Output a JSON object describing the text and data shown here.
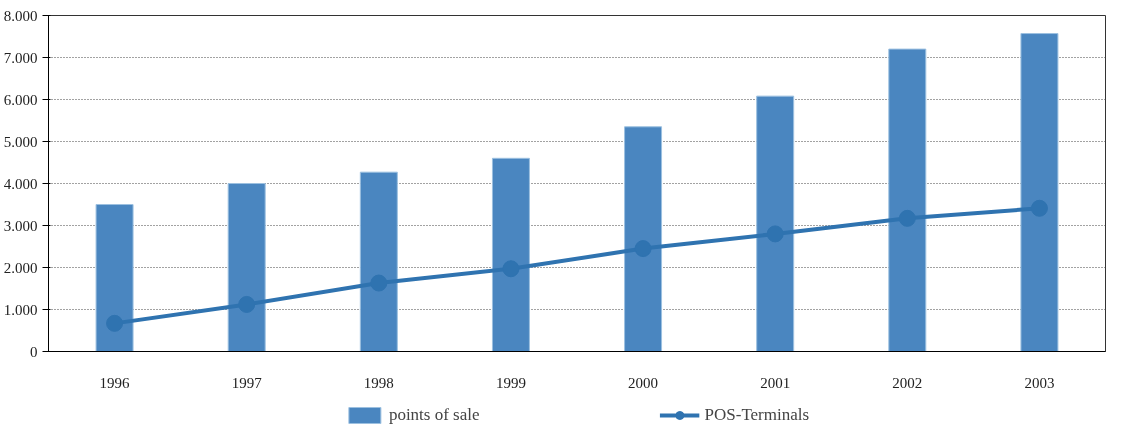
{
  "chart_data": {
    "type": "bar",
    "categories": [
      "1996",
      "1997",
      "1998",
      "1999",
      "2000",
      "2001",
      "2002",
      "2003"
    ],
    "series": [
      {
        "name": "points of sale",
        "color": "#4a86c0",
        "values": [
          3500,
          4000,
          4270,
          4600,
          5350,
          6080,
          7200,
          7570
        ]
      },
      {
        "name": "POS-Terminals",
        "type": "line",
        "color": "#2f73b0",
        "marker": "circle",
        "values": [
          670,
          1120,
          1630,
          1970,
          2450,
          2800,
          3170,
          3410
        ]
      }
    ],
    "ylim": [
      0,
      8000
    ],
    "yticks": [
      0,
      {
        "value": 1000,
        "label": "1.000"
      },
      {
        "value": 2000,
        "label": "2.000"
      },
      {
        "value": 3000,
        "label": "3.000"
      },
      {
        "value": 4000,
        "label": "4.000"
      },
      {
        "value": 5000,
        "label": "5.000"
      },
      {
        "value": 6000,
        "label": "6.000"
      },
      {
        "value": 7000,
        "label": "7.000"
      },
      {
        "value": 8000,
        "label": "8.000"
      }
    ],
    "grid": "y",
    "legend": "bottom"
  }
}
